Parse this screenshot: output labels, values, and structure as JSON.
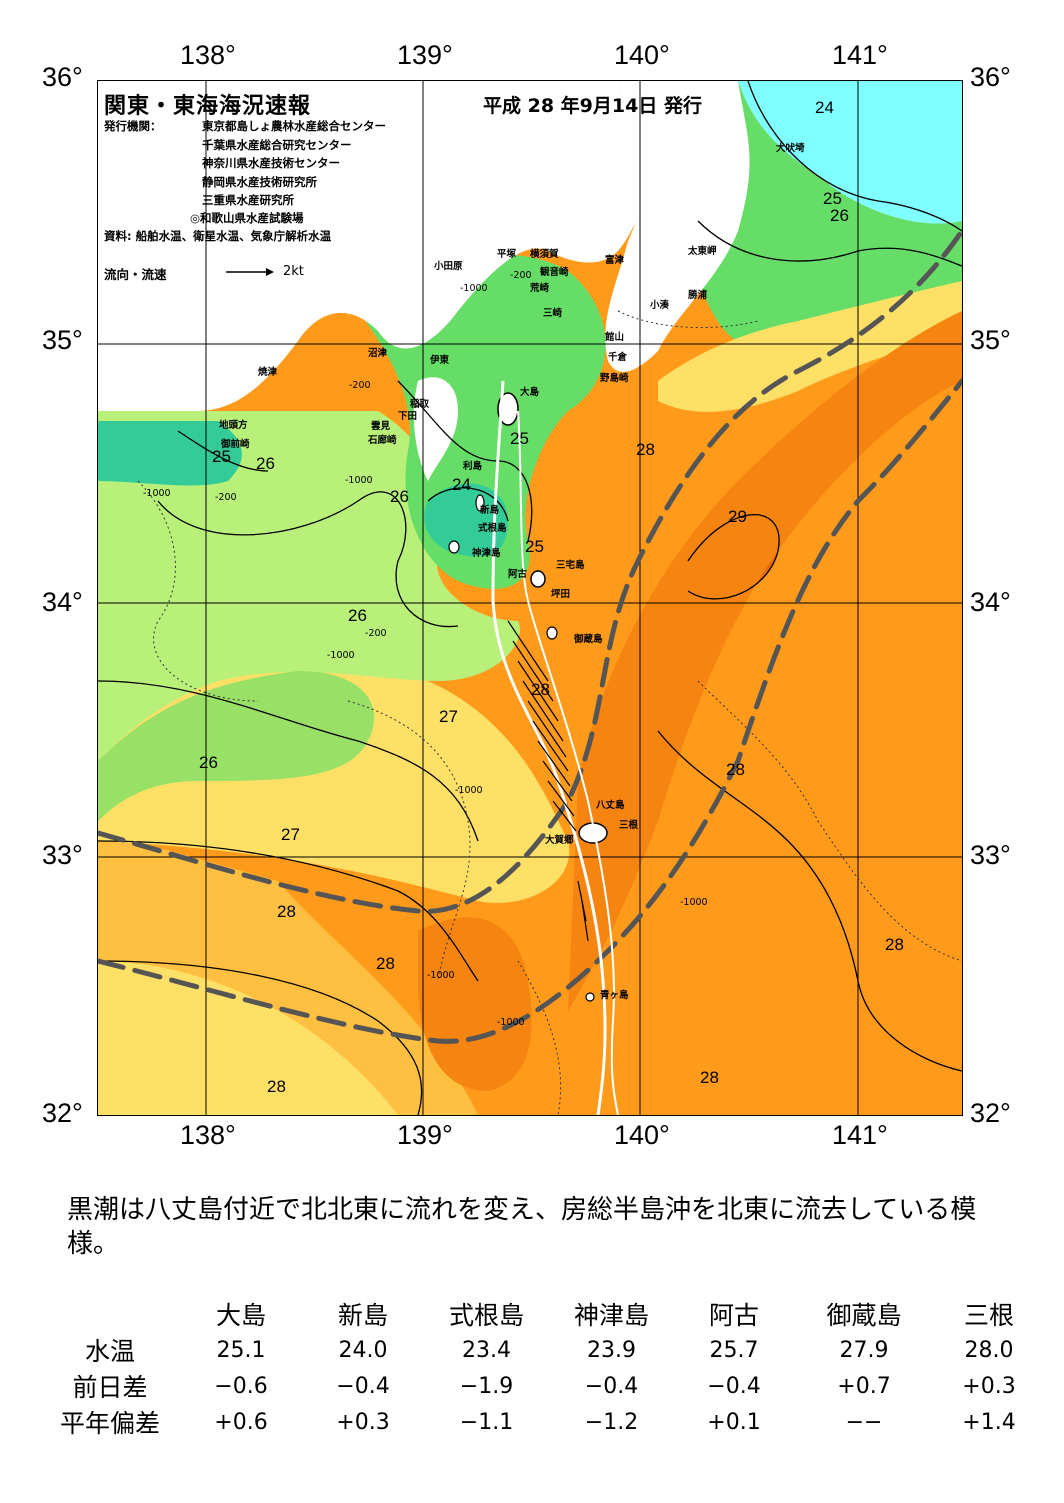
{
  "header": {
    "title": "関東・東海海況速報",
    "date": "平成 28 年9月14日 発行",
    "issuer_label": "発行機関：",
    "issuers": [
      "東京都島しょ農林水産総合センター",
      "千葉県水産総合研究センター",
      "神奈川県水産技術センター",
      "静岡県水産技術研究所",
      "三重県水産研究所",
      "◎和歌山県水産試験場"
    ],
    "sources": "資料: 船舶水温、衛星水温、気象庁解析水温",
    "flow_legend_label": "流向・流速",
    "flow_legend_unit": "2kt"
  },
  "axes": {
    "lon_labels": [
      "138°",
      "139°",
      "140°",
      "141°"
    ],
    "lat_labels": [
      "36°",
      "35°",
      "34°",
      "33°",
      "32°"
    ]
  },
  "places": [
    "犬吠埼",
    "太東岬",
    "勝浦",
    "小湊",
    "富津",
    "横須賀",
    "観音崎",
    "平塚",
    "荒崎",
    "小田原",
    "三崎",
    "館山",
    "千倉",
    "野島崎",
    "沼津",
    "伊東",
    "焼津",
    "稲取",
    "下田",
    "雲見",
    "石廊崎",
    "地頭方",
    "御前崎",
    "大島",
    "利島",
    "新島",
    "式根島",
    "神津島",
    "阿古",
    "三宅島",
    "坪田",
    "御蔵島",
    "八丈島",
    "三根",
    "大賀郷",
    "青ヶ島"
  ],
  "isotherm_labels": [
    "24",
    "25",
    "26",
    "25",
    "26",
    "26",
    "25",
    "24",
    "25",
    "28",
    "29",
    "26",
    "27",
    "26",
    "28",
    "28",
    "27",
    "28",
    "28",
    "28",
    "28",
    "28"
  ],
  "depth_labels": [
    "-200",
    "-1000"
  ],
  "colors": {
    "t24": "#7fffff",
    "t25": "#33cc99",
    "t26": "#66dd66",
    "t26b": "#b8f07a",
    "t27": "#ffe066",
    "t27b": "#ffbf40",
    "t28": "#ff9a1a",
    "t28b": "#f58510",
    "t29": "#e86a05",
    "kuroshio_axis": "#555555",
    "land": "#ffffff"
  },
  "comment": "黒潮は八丈島付近で北北東に流れを変え、房総半島沖を北東に流去している模様。",
  "table": {
    "columns": [
      "大島",
      "新島",
      "式根島",
      "神津島",
      "阿古",
      "御蔵島",
      "三根"
    ],
    "rows": [
      {
        "label": "水温",
        "values": [
          "25.1",
          "24.0",
          "23.4",
          "23.9",
          "25.7",
          "27.9",
          "28.0"
        ]
      },
      {
        "label": "前日差",
        "values": [
          "−0.6",
          "−0.4",
          "−1.9",
          "−0.4",
          "−0.4",
          "+0.7",
          "+0.3"
        ]
      },
      {
        "label": "平年偏差",
        "values": [
          "+0.6",
          "+0.3",
          "−1.1",
          "−1.2",
          "+0.1",
          "−−",
          "+1.4"
        ]
      }
    ]
  }
}
